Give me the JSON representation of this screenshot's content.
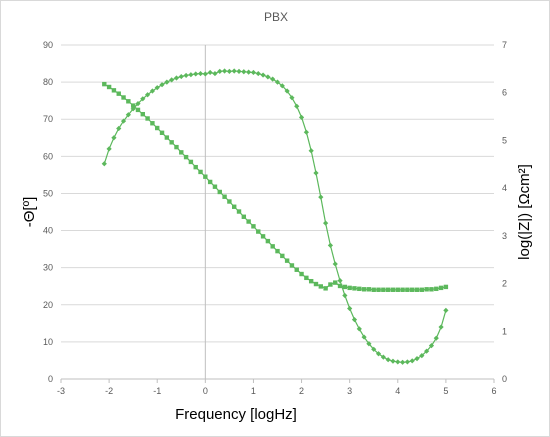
{
  "chart_data": {
    "type": "scatter",
    "title": "PBX",
    "xlabel": "Frequency [logHz]",
    "ylabel": "-Θ[º]",
    "y2label": "log(|Z|) [Ωcm²]",
    "xlim": [
      -3,
      6
    ],
    "ylim": [
      0,
      90
    ],
    "y2lim": [
      0,
      7
    ],
    "xticks": [
      "-3",
      "-2",
      "-1",
      "0",
      "1",
      "2",
      "3",
      "4",
      "5",
      "6"
    ],
    "yticks": [
      "0",
      "10",
      "20",
      "30",
      "40",
      "50",
      "60",
      "70",
      "80",
      "90"
    ],
    "y2ticks": [
      "0",
      "1",
      "2",
      "3",
      "4",
      "5",
      "6",
      "7"
    ],
    "grid": "horizontal",
    "color": "#5cb85c",
    "series": [
      {
        "axis": "left",
        "marker": "diamond",
        "x": [
          -2.1,
          -2.0,
          -1.9,
          -1.8,
          -1.7,
          -1.6,
          -1.5,
          -1.4,
          -1.3,
          -1.2,
          -1.1,
          -1.0,
          -0.9,
          -0.8,
          -0.7,
          -0.6,
          -0.5,
          -0.4,
          -0.3,
          -0.2,
          -0.1,
          0.0,
          0.1,
          0.2,
          0.3,
          0.4,
          0.5,
          0.6,
          0.7,
          0.8,
          0.9,
          1.0,
          1.1,
          1.2,
          1.3,
          1.4,
          1.5,
          1.6,
          1.7,
          1.8,
          1.9,
          2.0,
          2.1,
          2.2,
          2.3,
          2.4,
          2.5,
          2.6,
          2.7,
          2.8,
          2.9,
          3.0,
          3.1,
          3.2,
          3.3,
          3.4,
          3.5,
          3.6,
          3.7,
          3.8,
          3.9,
          4.0,
          4.1,
          4.2,
          4.3,
          4.4,
          4.5,
          4.6,
          4.7,
          4.8,
          4.9,
          5.0
        ],
        "y": [
          58.0,
          62.0,
          65.0,
          67.5,
          69.5,
          71.2,
          72.8,
          74.2,
          75.5,
          76.6,
          77.6,
          78.5,
          79.3,
          80.0,
          80.6,
          81.1,
          81.5,
          81.8,
          82.0,
          82.2,
          82.3,
          82.2,
          82.6,
          82.3,
          82.9,
          83.0,
          82.9,
          83.0,
          82.9,
          82.8,
          82.7,
          82.6,
          82.3,
          81.9,
          81.4,
          80.8,
          80.0,
          79.0,
          77.6,
          75.8,
          73.5,
          70.5,
          66.5,
          61.5,
          55.5,
          49.0,
          42.0,
          36.0,
          31.0,
          26.5,
          22.5,
          19.0,
          16.0,
          13.5,
          11.3,
          9.5,
          8.0,
          6.8,
          5.9,
          5.2,
          4.8,
          4.6,
          4.5,
          4.6,
          4.9,
          5.5,
          6.3,
          7.5,
          9.0,
          11.0,
          14.0,
          18.5
        ]
      },
      {
        "axis": "right",
        "marker": "square",
        "x": [
          -2.1,
          -2.0,
          -1.9,
          -1.8,
          -1.7,
          -1.6,
          -1.5,
          -1.4,
          -1.3,
          -1.2,
          -1.1,
          -1.0,
          -0.9,
          -0.8,
          -0.7,
          -0.6,
          -0.5,
          -0.4,
          -0.3,
          -0.2,
          -0.1,
          0.0,
          0.1,
          0.2,
          0.3,
          0.4,
          0.5,
          0.6,
          0.7,
          0.8,
          0.9,
          1.0,
          1.1,
          1.2,
          1.3,
          1.4,
          1.5,
          1.6,
          1.7,
          1.8,
          1.9,
          2.0,
          2.1,
          2.2,
          2.3,
          2.4,
          2.5,
          2.6,
          2.7,
          2.8,
          2.9,
          3.0,
          3.1,
          3.2,
          3.3,
          3.4,
          3.5,
          3.6,
          3.7,
          3.8,
          3.9,
          4.0,
          4.1,
          4.2,
          4.3,
          4.4,
          4.5,
          4.6,
          4.7,
          4.8,
          4.9,
          5.0
        ],
        "y": [
          6.18,
          6.12,
          6.05,
          5.98,
          5.9,
          5.82,
          5.73,
          5.64,
          5.55,
          5.46,
          5.36,
          5.26,
          5.16,
          5.06,
          4.96,
          4.86,
          4.75,
          4.65,
          4.55,
          4.44,
          4.34,
          4.24,
          4.13,
          4.03,
          3.92,
          3.82,
          3.72,
          3.61,
          3.51,
          3.4,
          3.3,
          3.2,
          3.09,
          2.99,
          2.89,
          2.78,
          2.68,
          2.58,
          2.48,
          2.38,
          2.29,
          2.2,
          2.12,
          2.05,
          1.99,
          1.94,
          1.9,
          1.98,
          2.02,
          1.95,
          1.93,
          1.91,
          1.9,
          1.89,
          1.88,
          1.88,
          1.87,
          1.87,
          1.87,
          1.87,
          1.87,
          1.87,
          1.87,
          1.87,
          1.87,
          1.87,
          1.87,
          1.88,
          1.88,
          1.89,
          1.91,
          1.93
        ]
      }
    ]
  }
}
